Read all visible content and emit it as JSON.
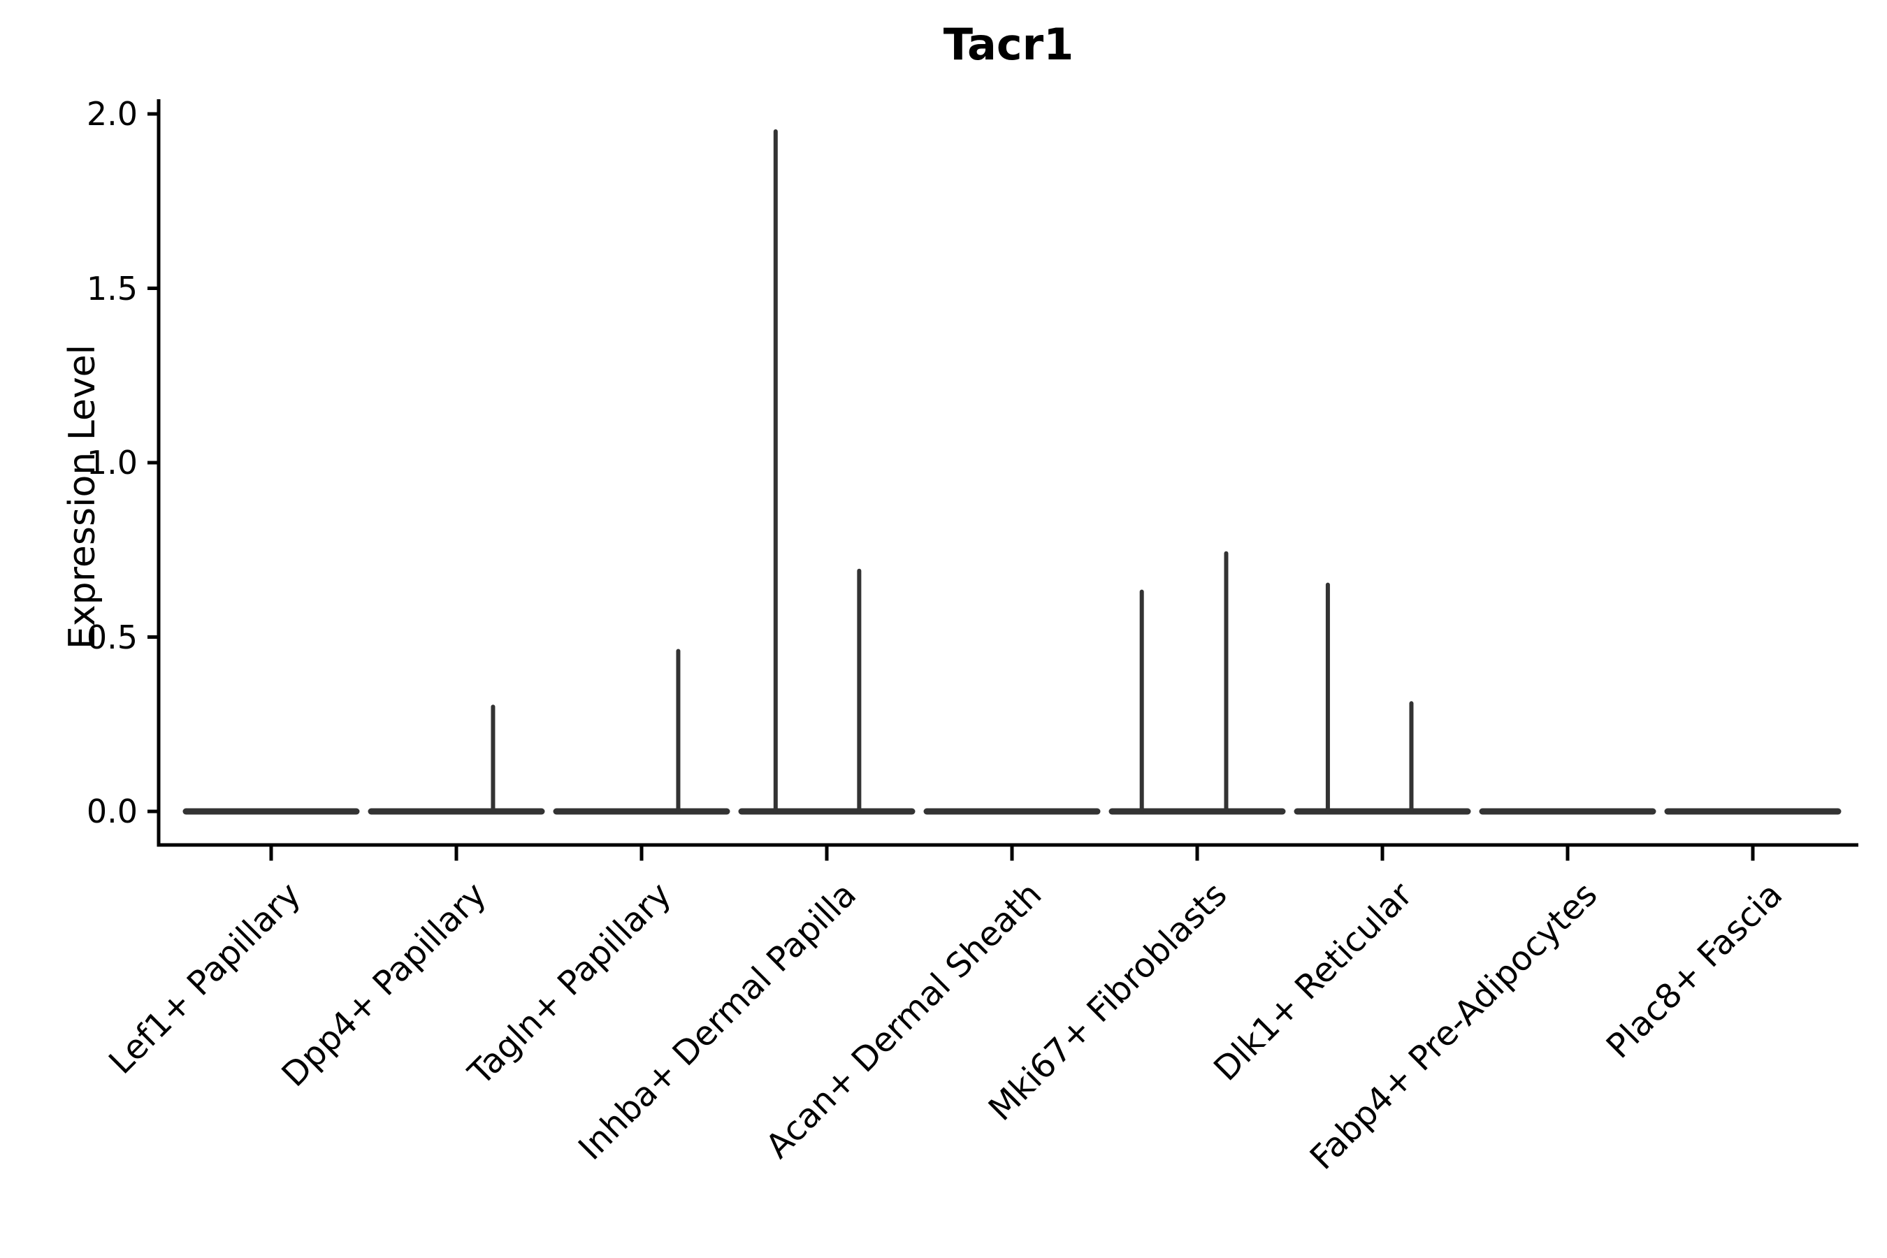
{
  "chart_data": {
    "type": "violin",
    "title": "Tacr1",
    "xlabel": "",
    "ylabel": "Expression Level",
    "ylim": [
      0.0,
      2.0
    ],
    "grid": false,
    "legend": "none",
    "axis_color": "#000000",
    "violin_color": "#333333",
    "yticks": [
      {
        "label": "0.0",
        "value": 0.0
      },
      {
        "label": "0.5",
        "value": 0.5
      },
      {
        "label": "1.0",
        "value": 1.0
      },
      {
        "label": "1.5",
        "value": 1.5
      },
      {
        "label": "2.0",
        "value": 2.0
      }
    ],
    "categories": [
      "Lef1+ Papillary",
      "Dpp4+ Papillary",
      "Tagln+ Papillary",
      "Inhba+ Dermal Papilla",
      "Acan+ Dermal Sheath",
      "Mki67+ Fibroblasts",
      "Dlk1+ Reticular",
      "Fabp4+ Pre-Adipocytes",
      "Plac8+ Fascia"
    ],
    "series": [
      {
        "category": "Lef1+ Papillary",
        "baseline_value": 0.0,
        "spikes": []
      },
      {
        "category": "Dpp4+ Papillary",
        "baseline_value": 0.0,
        "spikes": [
          {
            "offset_frac": 0.43,
            "value": 0.3
          }
        ]
      },
      {
        "category": "Tagln+ Papillary",
        "baseline_value": 0.0,
        "spikes": [
          {
            "offset_frac": 0.43,
            "value": 0.46
          }
        ]
      },
      {
        "category": "Inhba+ Dermal Papilla",
        "baseline_value": 0.0,
        "spikes": [
          {
            "offset_frac": -0.6,
            "value": 1.95
          },
          {
            "offset_frac": 0.38,
            "value": 0.69
          }
        ]
      },
      {
        "category": "Acan+ Dermal Sheath",
        "baseline_value": 0.0,
        "spikes": []
      },
      {
        "category": "Mki67+ Fibroblasts",
        "baseline_value": 0.0,
        "spikes": [
          {
            "offset_frac": -0.65,
            "value": 0.63
          },
          {
            "offset_frac": 0.34,
            "value": 0.74
          }
        ]
      },
      {
        "category": "Dlk1+ Reticular",
        "baseline_value": 0.0,
        "spikes": [
          {
            "offset_frac": -0.64,
            "value": 0.65
          },
          {
            "offset_frac": 0.34,
            "value": 0.31
          }
        ]
      },
      {
        "category": "Fabp4+ Pre-Adipocytes",
        "baseline_value": 0.0,
        "spikes": []
      },
      {
        "category": "Plac8+ Fascia",
        "baseline_value": 0.0,
        "spikes": []
      }
    ]
  }
}
